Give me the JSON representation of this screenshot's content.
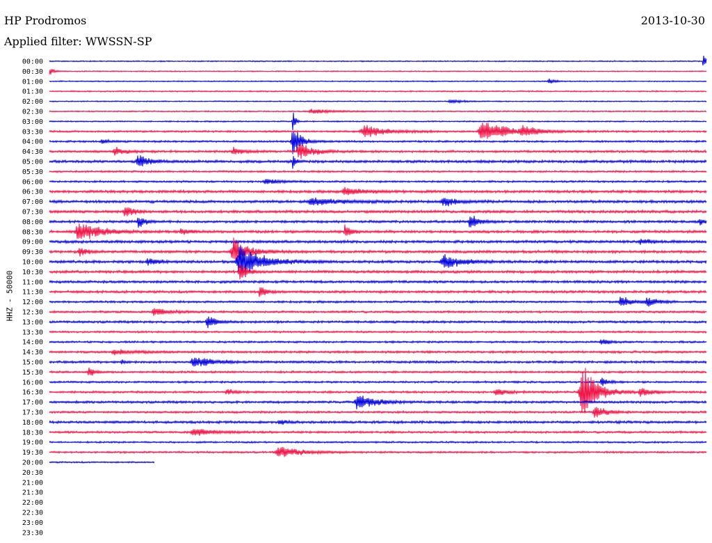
{
  "header": {
    "station": "HP Prodromos",
    "date": "2013-10-30",
    "filter": "Applied filter: WWSSN-SP"
  },
  "chart_data": {
    "type": "line",
    "title": "HP Prodromos",
    "ylabel": "HHZ - 50000",
    "row_labels": [
      "00:00",
      "00:30",
      "01:00",
      "01:30",
      "02:00",
      "02:30",
      "03:00",
      "03:30",
      "04:00",
      "04:30",
      "05:00",
      "05:30",
      "06:00",
      "06:30",
      "07:00",
      "07:30",
      "08:00",
      "08:30",
      "09:00",
      "09:30",
      "10:00",
      "10:30",
      "11:00",
      "11:30",
      "12:00",
      "12:30",
      "13:00",
      "13:30",
      "14:00",
      "14:30",
      "15:00",
      "15:30",
      "16:00",
      "16:30",
      "17:00",
      "17:30",
      "18:00",
      "18:30",
      "19:00",
      "19:30",
      "20:00",
      "20:30",
      "21:00",
      "21:30",
      "22:00",
      "22:30",
      "23:00",
      "23:30"
    ],
    "row_colors": [
      "#0000dd",
      "#ee1144"
    ],
    "recorded_rows": 41,
    "last_row_fraction": 0.16,
    "noise_levels": [
      0.6,
      0.6,
      0.6,
      0.7,
      0.6,
      0.7,
      0.7,
      1.0,
      1.0,
      1.2,
      1.4,
      1.0,
      1.0,
      1.4,
      1.4,
      1.4,
      1.3,
      1.4,
      1.4,
      1.4,
      1.4,
      1.4,
      1.3,
      1.3,
      1.1,
      1.1,
      1.2,
      1.0,
      1.0,
      1.2,
      1.2,
      1.1,
      1.0,
      1.1,
      1.2,
      1.1,
      1.3,
      1.1,
      0.9,
      1.0,
      0.8
    ],
    "events": [
      {
        "row": 0,
        "pos": 0.995,
        "amp": 14,
        "width": 0.004
      },
      {
        "row": 1,
        "pos": 0.0,
        "amp": 7,
        "width": 0.006
      },
      {
        "row": 2,
        "pos": 0.76,
        "amp": 5,
        "width": 0.008
      },
      {
        "row": 4,
        "pos": 0.61,
        "amp": 3,
        "width": 0.02
      },
      {
        "row": 5,
        "pos": 0.4,
        "amp": 4,
        "width": 0.03
      },
      {
        "row": 6,
        "pos": 0.37,
        "amp": 30,
        "width": 0.003
      },
      {
        "row": 7,
        "pos": 0.48,
        "amp": 10,
        "width": 0.035
      },
      {
        "row": 7,
        "pos": 0.66,
        "amp": 18,
        "width": 0.035
      },
      {
        "row": 7,
        "pos": 0.72,
        "amp": 8,
        "width": 0.02
      },
      {
        "row": 8,
        "pos": 0.37,
        "amp": 25,
        "width": 0.012
      },
      {
        "row": 8,
        "pos": 0.08,
        "amp": 4,
        "width": 0.01
      },
      {
        "row": 9,
        "pos": 0.38,
        "amp": 14,
        "width": 0.02
      },
      {
        "row": 9,
        "pos": 0.1,
        "amp": 7,
        "width": 0.015
      },
      {
        "row": 9,
        "pos": 0.28,
        "amp": 6,
        "width": 0.015
      },
      {
        "row": 10,
        "pos": 0.135,
        "amp": 12,
        "width": 0.015
      },
      {
        "row": 10,
        "pos": 0.37,
        "amp": 20,
        "width": 0.003
      },
      {
        "row": 12,
        "pos": 0.33,
        "amp": 5,
        "width": 0.02
      },
      {
        "row": 13,
        "pos": 0.45,
        "amp": 6,
        "width": 0.03
      },
      {
        "row": 14,
        "pos": 0.4,
        "amp": 6,
        "width": 0.04
      },
      {
        "row": 14,
        "pos": 0.6,
        "amp": 8,
        "width": 0.02
      },
      {
        "row": 15,
        "pos": 0.115,
        "amp": 12,
        "width": 0.01
      },
      {
        "row": 16,
        "pos": 0.135,
        "amp": 14,
        "width": 0.008
      },
      {
        "row": 16,
        "pos": 0.64,
        "amp": 16,
        "width": 0.01
      },
      {
        "row": 16,
        "pos": 0.99,
        "amp": 8,
        "width": 0.005
      },
      {
        "row": 17,
        "pos": 0.045,
        "amp": 16,
        "width": 0.03
      },
      {
        "row": 17,
        "pos": 0.45,
        "amp": 12,
        "width": 0.008
      },
      {
        "row": 17,
        "pos": 0.2,
        "amp": 7,
        "width": 0.01
      },
      {
        "row": 18,
        "pos": 0.9,
        "amp": 5,
        "width": 0.015
      },
      {
        "row": 19,
        "pos": 0.28,
        "amp": 24,
        "width": 0.02
      },
      {
        "row": 19,
        "pos": 0.045,
        "amp": 8,
        "width": 0.01
      },
      {
        "row": 20,
        "pos": 0.29,
        "amp": 30,
        "width": 0.03
      },
      {
        "row": 20,
        "pos": 0.6,
        "amp": 12,
        "width": 0.025
      },
      {
        "row": 20,
        "pos": 0.15,
        "amp": 6,
        "width": 0.015
      },
      {
        "row": 21,
        "pos": 0.29,
        "amp": 18,
        "width": 0.01
      },
      {
        "row": 23,
        "pos": 0.32,
        "amp": 10,
        "width": 0.01
      },
      {
        "row": 24,
        "pos": 0.87,
        "amp": 10,
        "width": 0.015
      },
      {
        "row": 24,
        "pos": 0.91,
        "amp": 8,
        "width": 0.015
      },
      {
        "row": 25,
        "pos": 0.16,
        "amp": 6,
        "width": 0.025
      },
      {
        "row": 26,
        "pos": 0.24,
        "amp": 14,
        "width": 0.01
      },
      {
        "row": 28,
        "pos": 0.84,
        "amp": 6,
        "width": 0.012
      },
      {
        "row": 29,
        "pos": 0.1,
        "amp": 4,
        "width": 0.03
      },
      {
        "row": 30,
        "pos": 0.22,
        "amp": 10,
        "width": 0.025
      },
      {
        "row": 30,
        "pos": 0.11,
        "amp": 6,
        "width": 0.005
      },
      {
        "row": 31,
        "pos": 0.06,
        "amp": 9,
        "width": 0.008
      },
      {
        "row": 32,
        "pos": 0.84,
        "amp": 8,
        "width": 0.01
      },
      {
        "row": 33,
        "pos": 0.81,
        "amp": 55,
        "width": 0.02
      },
      {
        "row": 33,
        "pos": 0.9,
        "amp": 9,
        "width": 0.015
      },
      {
        "row": 33,
        "pos": 0.68,
        "amp": 7,
        "width": 0.015
      },
      {
        "row": 33,
        "pos": 0.27,
        "amp": 5,
        "width": 0.01
      },
      {
        "row": 34,
        "pos": 0.47,
        "amp": 14,
        "width": 0.025
      },
      {
        "row": 35,
        "pos": 0.83,
        "amp": 12,
        "width": 0.015
      },
      {
        "row": 36,
        "pos": 0.35,
        "amp": 5,
        "width": 0.008
      },
      {
        "row": 37,
        "pos": 0.22,
        "amp": 6,
        "width": 0.03
      },
      {
        "row": 39,
        "pos": 0.35,
        "amp": 10,
        "width": 0.03
      }
    ]
  }
}
